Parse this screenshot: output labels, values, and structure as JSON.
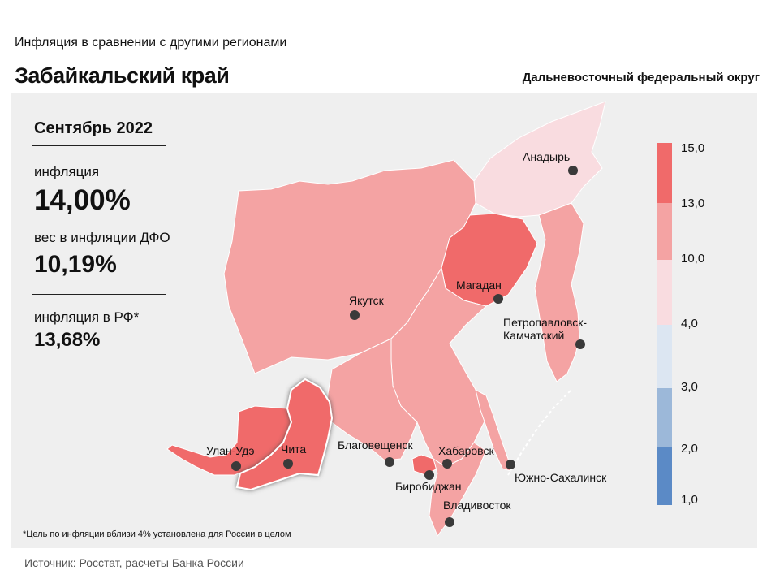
{
  "header": {
    "subtitle": "Инфляция  в сравнении  с другими  регионами",
    "title": "Забайкальский край",
    "district": "Дальневосточный федеральный округ"
  },
  "stats": {
    "period": "Сентябрь 2022",
    "inflation_label": "инфляция",
    "inflation_value": "14,00%",
    "weight_label": "вес в инфляции  ДФО",
    "weight_value": "10,19%",
    "rf_label": "инфляция  в РФ*",
    "rf_value": "13,68%"
  },
  "map": {
    "cities": {
      "anadyr": "Анадырь",
      "magadan": "Магадан",
      "yakutsk": "Якутск",
      "petropavlovsk_1": "Петропавловск-",
      "petropavlovsk_2": "Камчатский",
      "ulan_ude": "Улан-Удэ",
      "chita": "Чита",
      "blagoveshchensk": "Благовещенск",
      "khabarovsk": "Хабаровск",
      "birobidzhan": "Биробиджан",
      "yuzhno": "Южно-Сахалинск",
      "vladivostok": "Владивосток"
    },
    "colors": {
      "very_high": "#f06a6a",
      "high": "#f4a3a3",
      "medium": "#f9dce0",
      "low": "#dce6f2",
      "lower": "#9cb8d9",
      "lowest": "#5b8ac6"
    }
  },
  "legend": {
    "ticks": [
      "15,0",
      "13,0",
      "10,0",
      "4,0",
      "3,0",
      "2,0",
      "1,0"
    ]
  },
  "footnote": "*Цель по инфляции вблизи 4% установлена для России в целом",
  "source": "Источник: Росстат, расчеты Банка России"
}
